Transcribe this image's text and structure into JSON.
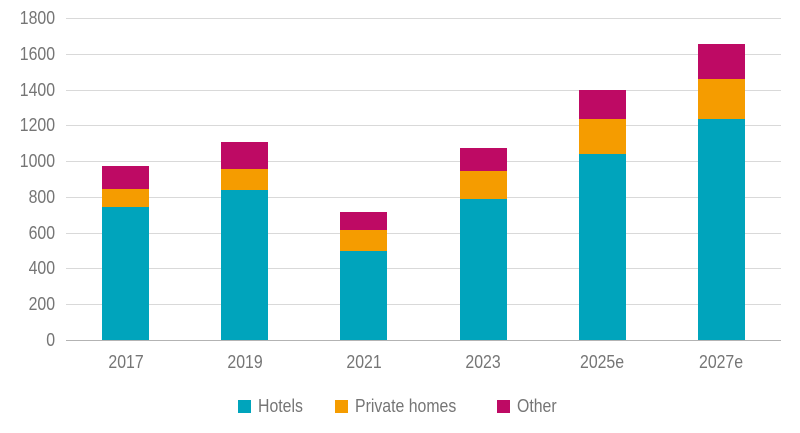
{
  "chart_data": {
    "type": "bar",
    "stacked": true,
    "title": "",
    "xlabel": "",
    "ylabel": "",
    "categories": [
      "2017",
      "2019",
      "2021",
      "2023",
      "2025e",
      "2027e"
    ],
    "series": [
      {
        "name": "Hotels",
        "color": "#00A4BC",
        "values": [
          745,
          840,
          500,
          790,
          1040,
          1235
        ]
      },
      {
        "name": "Private homes",
        "color": "#F59C00",
        "values": [
          100,
          115,
          115,
          155,
          195,
          225
        ]
      },
      {
        "name": "Other",
        "color": "#BE0A64",
        "values": [
          130,
          150,
          100,
          130,
          165,
          195
        ]
      }
    ],
    "ylim": [
      0,
      1800
    ],
    "yticks": [
      0,
      200,
      400,
      600,
      800,
      1000,
      1200,
      1400,
      1600,
      1800
    ],
    "grid": true,
    "legend_position": "bottom"
  },
  "legend": {
    "items": [
      {
        "label": "Hotels",
        "color": "#00A4BC"
      },
      {
        "label": "Private homes",
        "color": "#F59C00"
      },
      {
        "label": "Other",
        "color": "#BE0A64"
      }
    ]
  },
  "colors": {
    "background": "#FFFFFF",
    "gridline": "#D9D9D9",
    "baseline": "#B3B3B3",
    "axis_text": "#757575"
  }
}
